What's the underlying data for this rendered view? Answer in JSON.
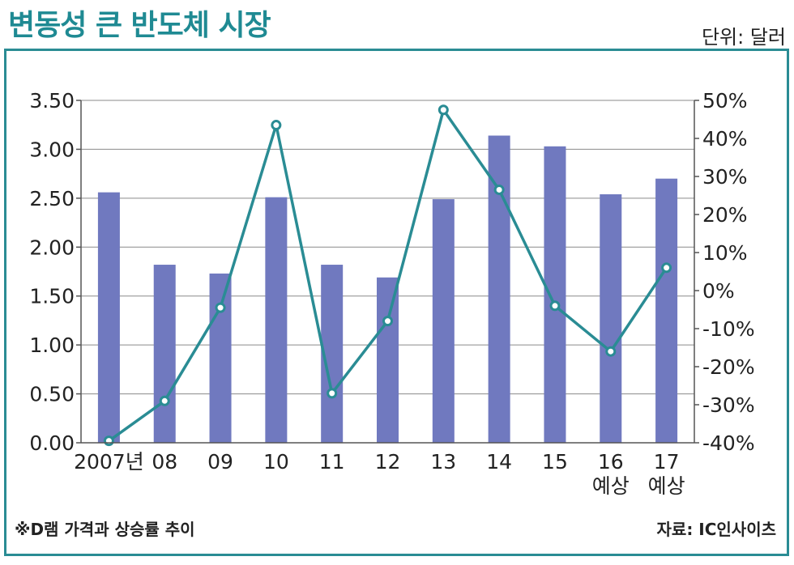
{
  "header": {
    "title": "변동성 큰 반도체 시장",
    "unit": "단위: 달러"
  },
  "footer": {
    "note": "※D램 가격과 상승률 추이",
    "source": "자료: IC인사이츠"
  },
  "colors": {
    "bar": "#7079bf",
    "line": "#2a8c94",
    "frame": "#2a8c94",
    "title": "#1f8a93"
  },
  "chart_data": {
    "type": "bar+line",
    "categories": [
      "2007년",
      "08",
      "09",
      "10",
      "11",
      "12",
      "13",
      "14",
      "15",
      "16\n예상",
      "17\n예상"
    ],
    "series": [
      {
        "type": "bar",
        "axis": "left",
        "values": [
          2.56,
          1.82,
          1.73,
          2.51,
          1.82,
          1.69,
          2.49,
          3.14,
          3.03,
          2.54,
          2.7
        ]
      },
      {
        "type": "line",
        "axis": "right",
        "values": [
          -39.5,
          -29,
          -4.5,
          43.5,
          -27,
          -8,
          47.5,
          26.5,
          -4,
          -16,
          6
        ]
      }
    ],
    "y_left": {
      "min": 0,
      "max": 3.5,
      "ticks": [
        "0.00",
        "0.50",
        "1.00",
        "1.50",
        "2.00",
        "2.50",
        "3.00",
        "3.50"
      ]
    },
    "y_right": {
      "min": -40,
      "max": 50,
      "ticks": [
        "-40%",
        "-30%",
        "-20%",
        "-10%",
        "0%",
        "10%",
        "20%",
        "30%",
        "40%",
        "50%"
      ]
    },
    "grid": true
  }
}
